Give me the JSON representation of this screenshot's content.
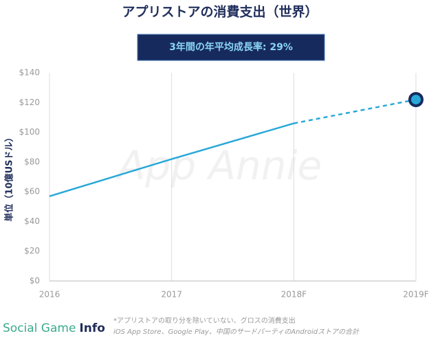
{
  "chart_data": {
    "type": "line",
    "title": "アプリストアの消費支出（世界）",
    "subtitle": "3年間の年平均成長率: 29%",
    "y_label": "単位（10億USドル）",
    "watermark": "App Annie",
    "categories": [
      "2016",
      "2017",
      "2018F",
      "2019F"
    ],
    "series": [
      {
        "color": "#29a8d8",
        "line_style": "solid",
        "values": [
          57,
          82,
          106,
          null
        ]
      },
      {
        "color": "#29a8d8",
        "line_style": "dashed",
        "end_marker": true,
        "values": [
          null,
          null,
          106,
          122
        ]
      }
    ],
    "ylim": [
      0,
      140
    ],
    "yticks": [
      {
        "value": 0,
        "label": "$0"
      },
      {
        "value": 20,
        "label": "$20"
      },
      {
        "value": 40,
        "label": "$40"
      },
      {
        "value": 60,
        "label": "$60"
      },
      {
        "value": 80,
        "label": "$80"
      },
      {
        "value": 100,
        "label": "$100"
      },
      {
        "value": 120,
        "label": "$120"
      },
      {
        "value": 140,
        "label": "$140"
      }
    ],
    "notes": [
      "*アプリストアの取り分を除いていない、グロスの消費支出",
      "iOS App Store、Google Play、中国のサードパーティのAndroidストアの合計"
    ]
  },
  "logo": {
    "part1": "Social Game",
    "part2": "Info"
  }
}
